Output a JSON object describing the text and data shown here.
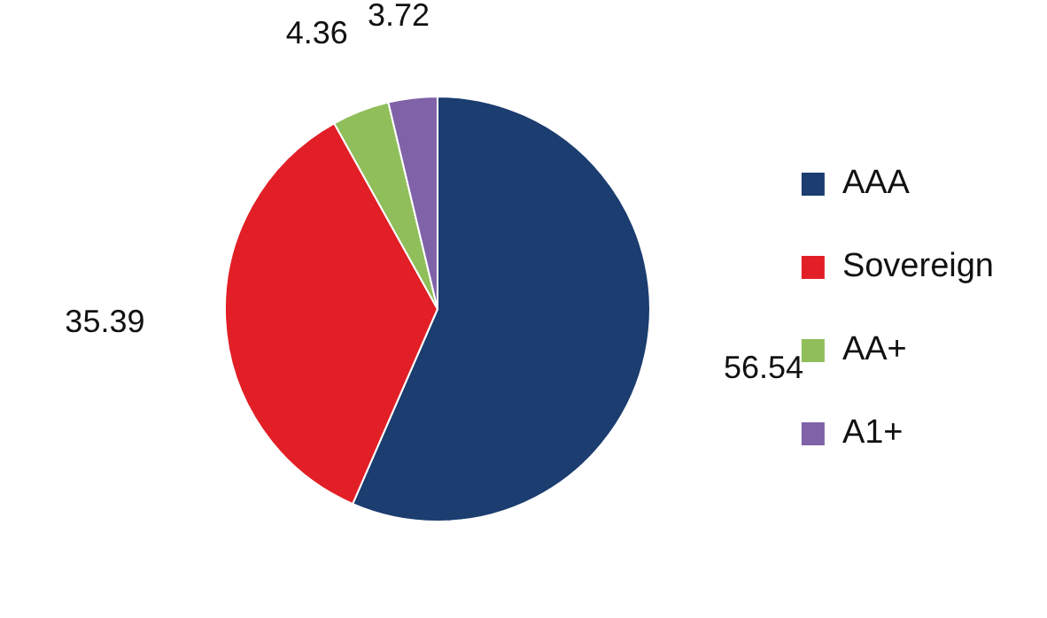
{
  "chart_data": {
    "type": "pie",
    "categories": [
      "AAA",
      "Sovereign",
      "AA+",
      "A1+"
    ],
    "values": [
      56.54,
      35.39,
      4.36,
      3.72
    ],
    "colors": [
      "#1b3d6f",
      "#e21f26",
      "#8fbe5a",
      "#7f62a8"
    ],
    "data_labels": true,
    "legend": "right"
  }
}
